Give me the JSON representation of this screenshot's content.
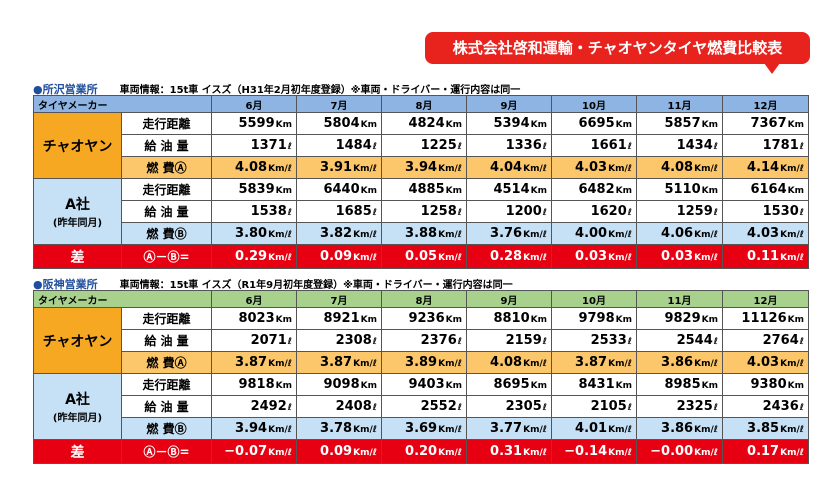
{
  "header": {
    "title": "株式会社啓和運輸・チャオヤンタイヤ燃費比較表"
  },
  "sections": [
    {
      "office": "●所沢営業所",
      "vehicle_info": "車両情報：15t車 イスズ（H31年2月初年度登録）※車両・ドライバー・運行内容は同一",
      "column_header": "タイヤメーカー",
      "months": [
        "6月",
        "7月",
        "8月",
        "9月",
        "10月",
        "11月",
        "12月"
      ],
      "groups": [
        {
          "name": "チャオヤン",
          "rows": [
            {
              "item": "走行距離",
              "unit": "Km",
              "values": [
                "5599",
                "5804",
                "4824",
                "5394",
                "6695",
                "5857",
                "7367"
              ]
            },
            {
              "item": "給 油 量",
              "unit": "ℓ",
              "values": [
                "1371",
                "1484",
                "1225",
                "1336",
                "1661",
                "1434",
                "1781"
              ]
            },
            {
              "item": "燃 費Ⓐ",
              "unit": "Km/ℓ",
              "values": [
                "4.08",
                "3.91",
                "3.94",
                "4.04",
                "4.03",
                "4.08",
                "4.14"
              ]
            }
          ]
        },
        {
          "name": "A社",
          "note": "(昨年同月)",
          "rows": [
            {
              "item": "走行距離",
              "unit": "Km",
              "values": [
                "5839",
                "6440",
                "4885",
                "4514",
                "6482",
                "5110",
                "6164"
              ]
            },
            {
              "item": "給 油 量",
              "unit": "ℓ",
              "values": [
                "1538",
                "1685",
                "1258",
                "1200",
                "1620",
                "1259",
                "1530"
              ]
            },
            {
              "item": "燃 費Ⓑ",
              "unit": "Km/ℓ",
              "values": [
                "3.80",
                "3.82",
                "3.88",
                "3.76",
                "4.00",
                "4.06",
                "4.03"
              ]
            }
          ]
        }
      ],
      "diff": {
        "label": "差",
        "formula": "Ⓐ－Ⓑ=",
        "unit": "Km/ℓ",
        "values": [
          "0.29",
          "0.09",
          "0.05",
          "0.28",
          "0.03",
          "0.03",
          "0.11"
        ]
      }
    },
    {
      "office": "●阪神営業所",
      "vehicle_info": "車両情報：15t車 イスズ（R1年9月初年度登録）※車両・ドライバー・運行内容は同一",
      "column_header": "タイヤメーカー",
      "months": [
        "6月",
        "7月",
        "8月",
        "9月",
        "10月",
        "11月",
        "12月"
      ],
      "groups": [
        {
          "name": "チャオヤン",
          "rows": [
            {
              "item": "走行距離",
              "unit": "Km",
              "values": [
                "8023",
                "8921",
                "9236",
                "8810",
                "9798",
                "9829",
                "11126"
              ]
            },
            {
              "item": "給 油 量",
              "unit": "ℓ",
              "values": [
                "2071",
                "2308",
                "2376",
                "2159",
                "2533",
                "2544",
                "2764"
              ]
            },
            {
              "item": "燃 費Ⓐ",
              "unit": "Km/ℓ",
              "values": [
                "3.87",
                "3.87",
                "3.89",
                "4.08",
                "3.87",
                "3.86",
                "4.03"
              ]
            }
          ]
        },
        {
          "name": "A社",
          "note": "(昨年同月)",
          "rows": [
            {
              "item": "走行距離",
              "unit": "Km",
              "values": [
                "9818",
                "9098",
                "9403",
                "8695",
                "8431",
                "8985",
                "9380"
              ]
            },
            {
              "item": "給 油 量",
              "unit": "ℓ",
              "values": [
                "2492",
                "2408",
                "2552",
                "2305",
                "2105",
                "2325",
                "2436"
              ]
            },
            {
              "item": "燃 費Ⓑ",
              "unit": "Km/ℓ",
              "values": [
                "3.94",
                "3.78",
                "3.69",
                "3.77",
                "4.01",
                "3.86",
                "3.85"
              ]
            }
          ]
        }
      ],
      "diff": {
        "label": "差",
        "formula": "Ⓐ－Ⓑ=",
        "unit": "Km/ℓ",
        "values": [
          "−0.07",
          "0.09",
          "0.20",
          "0.31",
          "−0.14",
          "−0.00",
          "0.17"
        ]
      }
    }
  ]
}
